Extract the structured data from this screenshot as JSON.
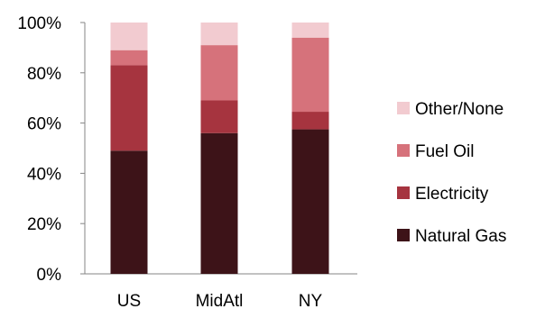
{
  "chart_data": {
    "type": "bar",
    "stacked": true,
    "percent": true,
    "categories": [
      "US",
      "MidAtl",
      "NY"
    ],
    "series": [
      {
        "name": "Natural Gas",
        "color": "#3d1318",
        "values": [
          49,
          56,
          57.5
        ]
      },
      {
        "name": "Electricity",
        "color": "#a6343f",
        "values": [
          34,
          13,
          7
        ]
      },
      {
        "name": "Fuel Oil",
        "color": "#d6727b",
        "values": [
          6,
          22,
          29.5
        ]
      },
      {
        "name": "Other/None",
        "color": "#f2cbd0",
        "values": [
          11,
          9,
          6
        ]
      }
    ],
    "ylim": [
      0,
      100
    ],
    "yticks": [
      "0%",
      "20%",
      "40%",
      "60%",
      "80%",
      "100%"
    ],
    "grid": false,
    "legend": "right",
    "legend_order": [
      "Other/None",
      "Fuel Oil",
      "Electricity",
      "Natural Gas"
    ]
  }
}
